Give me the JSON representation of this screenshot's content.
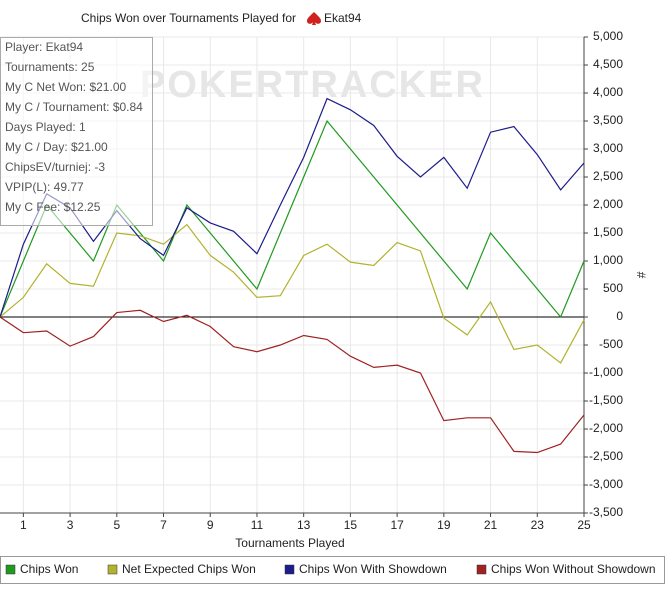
{
  "chart_data": {
    "type": "line",
    "title": "Chips Won over Tournaments Played for",
    "player": "Ekat94",
    "watermark": "POKERTRACKER",
    "stats_box": [
      "Player: Ekat94",
      "Tournaments: 25",
      "My C Net Won: $21.00",
      "My C / Tournament: $0.84",
      "Days Played: 1",
      "My C / Day: $21.00",
      "ChipsEV/turniej: -3",
      "VPIP(L): 49.77",
      "My C Fee: $12.25"
    ],
    "x_label": "Tournaments Played",
    "y_label": "#",
    "x": [
      0,
      1,
      2,
      3,
      4,
      5,
      6,
      7,
      8,
      9,
      10,
      11,
      12,
      13,
      14,
      15,
      16,
      17,
      18,
      19,
      20,
      21,
      22,
      23,
      24,
      25
    ],
    "xlim": [
      0,
      25
    ],
    "xticks": [
      1,
      3,
      5,
      7,
      9,
      11,
      13,
      15,
      17,
      19,
      21,
      23,
      25
    ],
    "ylim": [
      -3500,
      5000
    ],
    "yticks": [
      {
        "value": 5000,
        "label": "5,000"
      },
      {
        "value": 4500,
        "label": "4,500"
      },
      {
        "value": 4000,
        "label": "4,000"
      },
      {
        "value": 3500,
        "label": "3,500"
      },
      {
        "value": 3000,
        "label": "3,000"
      },
      {
        "value": 2500,
        "label": "2,500"
      },
      {
        "value": 2000,
        "label": "2,000"
      },
      {
        "value": 1500,
        "label": "1,500"
      },
      {
        "value": 1000,
        "label": "1,000"
      },
      500,
      0,
      -500,
      {
        "value": -1000,
        "label": "-1,000"
      },
      {
        "value": -1500,
        "label": "-1,500"
      },
      {
        "value": -2000,
        "label": "-2,000"
      },
      {
        "value": -2500,
        "label": "-2,500"
      },
      {
        "value": -3000,
        "label": "-3,000"
      },
      {
        "value": -3500,
        "label": "-3,500"
      }
    ],
    "grid": true,
    "legend": "bottom",
    "series": [
      {
        "name": "Chips Won",
        "color": "#1f9a1f",
        "values": [
          0,
          1000,
          2000,
          1500,
          1000,
          2000,
          1500,
          1000,
          2000,
          1500,
          1000,
          500,
          1500,
          2500,
          3500,
          3000,
          2500,
          2000,
          1500,
          1000,
          500,
          1500,
          1000,
          500,
          0,
          1000
        ]
      },
      {
        "name": "Net Expected Chips Won",
        "color": "#b2b22e",
        "values": [
          0,
          350,
          950,
          600,
          550,
          1500,
          1450,
          1300,
          1650,
          1100,
          800,
          350,
          380,
          1100,
          1300,
          980,
          920,
          1330,
          1180,
          -20,
          -320,
          270,
          -580,
          -500,
          -820,
          -50
        ]
      },
      {
        "name": "Chips Won With Showdown",
        "color": "#1c1c8a",
        "values": [
          0,
          1300,
          2200,
          1950,
          1350,
          1900,
          1400,
          1100,
          1950,
          1680,
          1530,
          1130,
          2000,
          2850,
          3900,
          3700,
          3420,
          2870,
          2500,
          2850,
          2300,
          3300,
          3400,
          2900,
          2270,
          2750
        ]
      },
      {
        "name": "Chips Won Without Showdown",
        "color": "#a02222",
        "values": [
          0,
          -280,
          -250,
          -520,
          -350,
          80,
          120,
          -80,
          30,
          -170,
          -530,
          -620,
          -500,
          -330,
          -400,
          -700,
          -900,
          -860,
          -1000,
          -1850,
          -1800,
          -1800,
          -2400,
          -2420,
          -2270,
          -1750
        ]
      }
    ]
  }
}
